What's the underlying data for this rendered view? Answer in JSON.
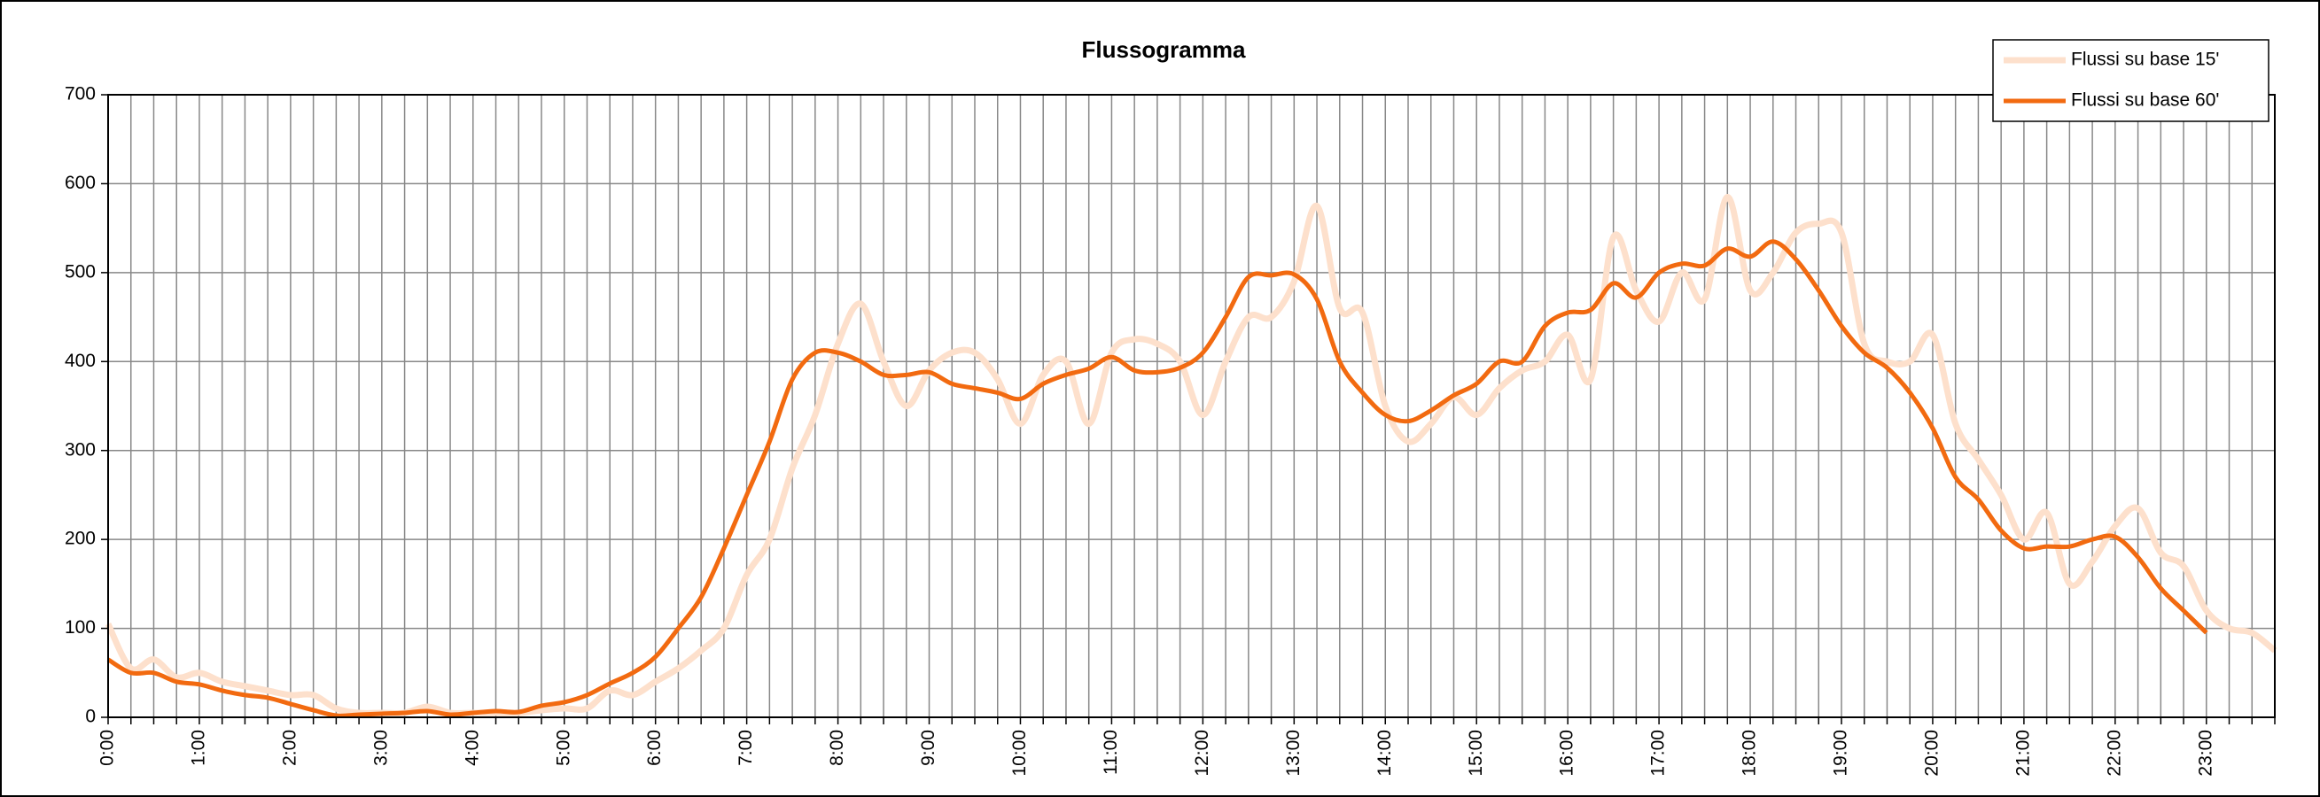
{
  "chart_data": {
    "type": "line",
    "title": "Flussogramma",
    "categories": [
      "0:00",
      null,
      null,
      null,
      "1:00",
      null,
      null,
      null,
      "2:00",
      null,
      null,
      null,
      "3:00",
      null,
      null,
      null,
      "4:00",
      null,
      null,
      null,
      "5:00",
      null,
      null,
      null,
      "6:00",
      null,
      null,
      null,
      "7:00",
      null,
      null,
      null,
      "8:00",
      null,
      null,
      null,
      "9:00",
      null,
      null,
      null,
      "10:00",
      null,
      null,
      null,
      "11:00",
      null,
      null,
      null,
      "12:00",
      null,
      null,
      null,
      "13:00",
      null,
      null,
      null,
      "14:00",
      null,
      null,
      null,
      "15:00",
      null,
      null,
      null,
      "16:00",
      null,
      null,
      null,
      "17:00",
      null,
      null,
      null,
      "18:00",
      null,
      null,
      null,
      "19:00",
      null,
      null,
      null,
      "20:00",
      null,
      null,
      null,
      "21:00",
      null,
      null,
      null,
      "22:00",
      null,
      null,
      null,
      "23:00",
      null,
      null,
      null
    ],
    "series": [
      {
        "name": "Flussi su base 15'",
        "color": "#fde0cc",
        "width": 7,
        "values": [
          105,
          55,
          65,
          45,
          50,
          40,
          35,
          30,
          25,
          25,
          10,
          5,
          5,
          5,
          12,
          5,
          5,
          5,
          5,
          8,
          10,
          10,
          30,
          25,
          40,
          55,
          75,
          100,
          160,
          200,
          280,
          340,
          420,
          465,
          400,
          350,
          390,
          410,
          410,
          380,
          330,
          385,
          400,
          330,
          410,
          425,
          420,
          400,
          340,
          400,
          450,
          450,
          490,
          575,
          460,
          455,
          350,
          310,
          330,
          360,
          340,
          370,
          390,
          400,
          430,
          380,
          540,
          480,
          445,
          500,
          470,
          585,
          480,
          500,
          545,
          555,
          545,
          420,
          400,
          400,
          430,
          330,
          290,
          250,
          200,
          230,
          150,
          175,
          215,
          235,
          185,
          170,
          120,
          100,
          95,
          75
        ]
      },
      {
        "name": "Flussi su base 60'",
        "color": "#f26a10",
        "width": 5,
        "values": [
          65,
          50,
          50,
          40,
          37,
          30,
          25,
          22,
          15,
          8,
          2,
          3,
          4,
          5,
          7,
          3,
          5,
          7,
          6,
          13,
          17,
          25,
          38,
          50,
          68,
          100,
          135,
          190,
          250,
          310,
          380,
          410,
          410,
          400,
          385,
          385,
          388,
          375,
          370,
          365,
          358,
          375,
          385,
          392,
          405,
          390,
          388,
          393,
          410,
          450,
          495,
          497,
          498,
          470,
          400,
          365,
          340,
          333,
          345,
          362,
          375,
          400,
          400,
          440,
          455,
          458,
          488,
          472,
          500,
          510,
          508,
          527,
          518,
          535,
          515,
          480,
          440,
          410,
          393,
          365,
          325,
          270,
          245,
          210,
          190,
          192,
          192,
          200,
          203,
          180,
          145,
          120,
          95,
          null,
          null,
          null
        ]
      }
    ],
    "ylim": [
      0,
      700
    ],
    "yticks": [
      0,
      100,
      200,
      300,
      400,
      500,
      600,
      700
    ],
    "grid": true,
    "legend": "upper right"
  }
}
